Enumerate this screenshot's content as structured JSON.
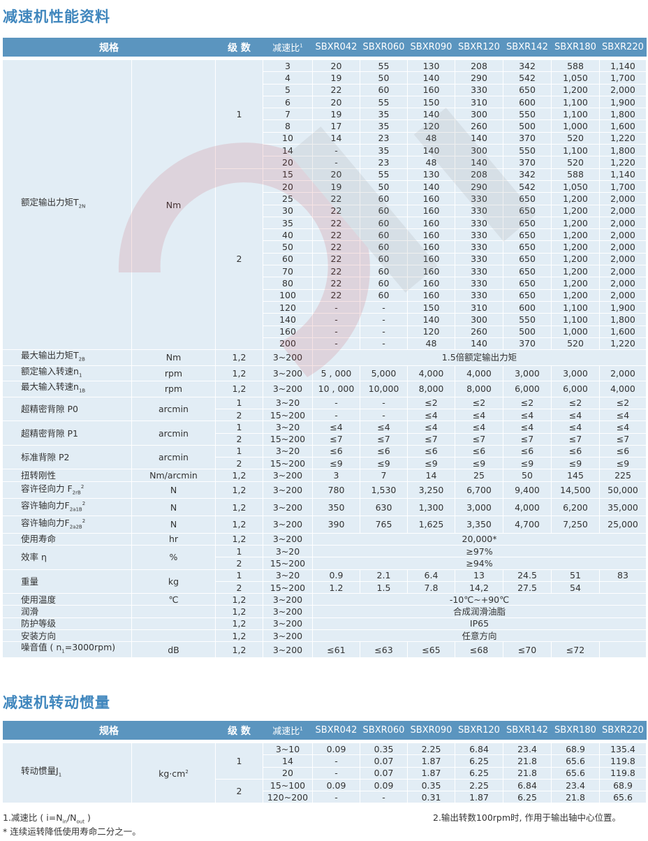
{
  "title": "减速机性能资料",
  "title2": "减速机转动惯量",
  "header": {
    "spec": "规格",
    "stage": "级 数",
    "ratio": "减速比",
    "ratio_sup": "1",
    "models": [
      "SBXR042",
      "SBXR060",
      "SBXR090",
      "SBXR120",
      "SBXR142",
      "SBXR180",
      "SBXR220"
    ]
  },
  "spec_groups": [
    {
      "label": "额定输出力矩T",
      "sub": "2N",
      "unit": "Nm",
      "stages": [
        {
          "stage": "1",
          "rows": [
            {
              "ratio": "3",
              "values": [
                "20",
                "55",
                "130",
                "208",
                "342",
                "588",
                "1,140"
              ]
            },
            {
              "ratio": "4",
              "values": [
                "19",
                "50",
                "140",
                "290",
                "542",
                "1,050",
                "1,700"
              ]
            },
            {
              "ratio": "5",
              "values": [
                "22",
                "60",
                "160",
                "330",
                "650",
                "1,200",
                "2,000"
              ]
            },
            {
              "ratio": "6",
              "values": [
                "20",
                "55",
                "150",
                "310",
                "600",
                "1,100",
                "1,900"
              ]
            },
            {
              "ratio": "7",
              "values": [
                "19",
                "35",
                "140",
                "300",
                "550",
                "1,100",
                "1,800"
              ]
            },
            {
              "ratio": "8",
              "values": [
                "17",
                "35",
                "120",
                "260",
                "500",
                "1,000",
                "1,600"
              ]
            },
            {
              "ratio": "10",
              "values": [
                "14",
                "23",
                "48",
                "140",
                "370",
                "520",
                "1,220"
              ]
            },
            {
              "ratio": "14",
              "values": [
                "-",
                "35",
                "140",
                "300",
                "550",
                "1,100",
                "1,800"
              ]
            },
            {
              "ratio": "20",
              "values": [
                "-",
                "23",
                "48",
                "140",
                "370",
                "520",
                "1,220"
              ]
            }
          ]
        },
        {
          "stage": "2",
          "rows": [
            {
              "ratio": "15",
              "values": [
                "20",
                "55",
                "130",
                "208",
                "342",
                "588",
                "1,140"
              ]
            },
            {
              "ratio": "20",
              "values": [
                "19",
                "50",
                "140",
                "290",
                "542",
                "1,050",
                "1,700"
              ]
            },
            {
              "ratio": "25",
              "values": [
                "22",
                "60",
                "160",
                "330",
                "650",
                "1,200",
                "2,000"
              ]
            },
            {
              "ratio": "30",
              "values": [
                "22",
                "60",
                "160",
                "330",
                "650",
                "1,200",
                "2,000"
              ]
            },
            {
              "ratio": "35",
              "values": [
                "22",
                "60",
                "160",
                "330",
                "650",
                "1,200",
                "2,000"
              ]
            },
            {
              "ratio": "40",
              "values": [
                "22",
                "60",
                "160",
                "330",
                "650",
                "1,200",
                "2,000"
              ]
            },
            {
              "ratio": "50",
              "values": [
                "22",
                "60",
                "160",
                "330",
                "650",
                "1,200",
                "2,000"
              ]
            },
            {
              "ratio": "60",
              "values": [
                "22",
                "60",
                "160",
                "330",
                "650",
                "1,200",
                "2,000"
              ]
            },
            {
              "ratio": "70",
              "values": [
                "22",
                "60",
                "160",
                "330",
                "650",
                "1,200",
                "2,000"
              ]
            },
            {
              "ratio": "80",
              "values": [
                "22",
                "60",
                "160",
                "330",
                "650",
                "1,200",
                "2,000"
              ]
            },
            {
              "ratio": "100",
              "values": [
                "22",
                "60",
                "160",
                "330",
                "650",
                "1,200",
                "2,000"
              ]
            },
            {
              "ratio": "120",
              "values": [
                "-",
                "-",
                "150",
                "310",
                "600",
                "1,100",
                "1,900"
              ]
            },
            {
              "ratio": "140",
              "values": [
                "-",
                "-",
                "140",
                "300",
                "550",
                "1,100",
                "1,800"
              ]
            },
            {
              "ratio": "160",
              "values": [
                "-",
                "-",
                "120",
                "260",
                "500",
                "1,000",
                "1,600"
              ]
            },
            {
              "ratio": "200",
              "values": [
                "-",
                "-",
                "48",
                "140",
                "370",
                "520",
                "1,220"
              ]
            }
          ]
        }
      ]
    },
    {
      "label": "最大输出力矩T",
      "sub": "2B",
      "unit": "Nm",
      "stages": [
        {
          "stage": "1,2",
          "rows": [
            {
              "ratio": "3~200",
              "span": "1.5倍额定输出力矩"
            }
          ]
        }
      ]
    },
    {
      "label": "额定输入转速n",
      "sub": "1",
      "unit": "rpm",
      "stages": [
        {
          "stage": "1,2",
          "rows": [
            {
              "ratio": "3~200",
              "values": [
                "5 , 000",
                "5,000",
                "4,000",
                "4,000",
                "3,000",
                "3,000",
                "2,000"
              ]
            }
          ]
        }
      ]
    },
    {
      "label": "最大输入转速n",
      "sub": "1B",
      "unit": "rpm",
      "stages": [
        {
          "stage": "1,2",
          "rows": [
            {
              "ratio": "3~200",
              "values": [
                "10 , 000",
                "10,000",
                "8,000",
                "8,000",
                "6,000",
                "6,000",
                "4,000"
              ]
            }
          ]
        }
      ]
    },
    {
      "label": "超精密背隙 P0",
      "unit": "arcmin",
      "stages": [
        {
          "stage": "1",
          "rows": [
            {
              "ratio": "3~20",
              "values": [
                "-",
                "-",
                "≤2",
                "≤2",
                "≤2",
                "≤2",
                "≤2"
              ]
            }
          ]
        },
        {
          "stage": "2",
          "rows": [
            {
              "ratio": "15~200",
              "values": [
                "-",
                "-",
                "≤4",
                "≤4",
                "≤4",
                "≤4",
                "≤4"
              ]
            }
          ]
        }
      ]
    },
    {
      "label": "超精密背隙 P1",
      "unit": "arcmin",
      "stages": [
        {
          "stage": "1",
          "rows": [
            {
              "ratio": "3~20",
              "values": [
                "≤4",
                "≤4",
                "≤4",
                "≤4",
                "≤4",
                "≤4",
                "≤4"
              ]
            }
          ]
        },
        {
          "stage": "2",
          "rows": [
            {
              "ratio": "15~200",
              "values": [
                "≤7",
                "≤7",
                "≤7",
                "≤7",
                "≤7",
                "≤7",
                "≤7"
              ]
            }
          ]
        }
      ]
    },
    {
      "label": "标准背隙 P2",
      "unit": "arcmin",
      "stages": [
        {
          "stage": "1",
          "rows": [
            {
              "ratio": "3~20",
              "values": [
                "≤6",
                "≤6",
                "≤6",
                "≤6",
                "≤6",
                "≤6",
                "≤6"
              ]
            }
          ]
        },
        {
          "stage": "2",
          "rows": [
            {
              "ratio": "15~200",
              "values": [
                "≤9",
                "≤9",
                "≤9",
                "≤9",
                "≤9",
                "≤9",
                "≤9"
              ]
            }
          ]
        }
      ]
    },
    {
      "label": "扭转刚性",
      "unit": "Nm/arcmin",
      "stages": [
        {
          "stage": "1,2",
          "rows": [
            {
              "ratio": "3~200",
              "values": [
                "3",
                "7",
                "14",
                "25",
                "50",
                "145",
                "225"
              ]
            }
          ]
        }
      ]
    },
    {
      "label": "容许径向力 F",
      "sub": "2rB",
      "sup": "2",
      "unit": "N",
      "stages": [
        {
          "stage": "1,2",
          "rows": [
            {
              "ratio": "3~200",
              "values": [
                "780",
                "1,530",
                "3,250",
                "6,700",
                "9,400",
                "14,500",
                "50,000"
              ]
            }
          ]
        }
      ]
    },
    {
      "label": "容许轴向力F",
      "sub": "2a1B",
      "sup": "2",
      "unit": "N",
      "stages": [
        {
          "stage": "1,2",
          "rows": [
            {
              "ratio": "3~200",
              "values": [
                "350",
                "630",
                "1,300",
                "3,000",
                "4,000",
                "6,200",
                "35,000"
              ]
            }
          ]
        }
      ]
    },
    {
      "label": "容许轴向力F",
      "sub": "2a2B",
      "sup": "2",
      "unit": "N",
      "stages": [
        {
          "stage": "1,2",
          "rows": [
            {
              "ratio": "3~200",
              "values": [
                "390",
                "765",
                "1,625",
                "3,350",
                "4,700",
                "7,250",
                "25,000"
              ]
            }
          ]
        }
      ]
    },
    {
      "label": "使用寿命",
      "unit": "hr",
      "stages": [
        {
          "stage": "1,2",
          "rows": [
            {
              "ratio": "3~200",
              "span": "20,000*"
            }
          ]
        }
      ]
    },
    {
      "label": "效率 η",
      "unit": "%",
      "stages": [
        {
          "stage": "1",
          "rows": [
            {
              "ratio": "3~20",
              "span": "≥97%"
            }
          ]
        },
        {
          "stage": "2",
          "rows": [
            {
              "ratio": "15~200",
              "span": "≥94%"
            }
          ]
        }
      ]
    },
    {
      "label": "重量",
      "unit": "kg",
      "stages": [
        {
          "stage": "1",
          "rows": [
            {
              "ratio": "3~20",
              "values": [
                "0.9",
                "2.1",
                "6.4",
                "13",
                "24.5",
                "51",
                "83"
              ]
            }
          ]
        },
        {
          "stage": "2",
          "rows": [
            {
              "ratio": "15~200",
              "values": [
                "1.2",
                "1.5",
                "7.8",
                "14,2",
                "27.5",
                "54",
                ""
              ]
            }
          ]
        }
      ]
    },
    {
      "label": "使用温度",
      "unit": "℃",
      "stages": [
        {
          "stage": "1,2",
          "rows": [
            {
              "ratio": "3~200",
              "span": "-10℃~+90℃"
            }
          ]
        }
      ]
    },
    {
      "label": "润滑",
      "unit": "",
      "stages": [
        {
          "stage": "1,2",
          "rows": [
            {
              "ratio": "3~200",
              "span": "合成润滑油脂"
            }
          ]
        }
      ]
    },
    {
      "label": "防护等级",
      "unit": "",
      "stages": [
        {
          "stage": "1,2",
          "rows": [
            {
              "ratio": "3~200",
              "span": "IP65"
            }
          ]
        }
      ]
    },
    {
      "label": "安装方向",
      "unit": "",
      "stages": [
        {
          "stage": "1,2",
          "rows": [
            {
              "ratio": "3~200",
              "span": "任意方向"
            }
          ]
        }
      ]
    },
    {
      "label": "噪音值 ( n",
      "sub": "1",
      "label_tail": "=3000rpm)",
      "unit": "dB",
      "stages": [
        {
          "stage": "1,2",
          "rows": [
            {
              "ratio": "3~200",
              "values": [
                "≤61",
                "≤63",
                "≤65",
                "≤68",
                "≤70",
                "≤72",
                ""
              ]
            }
          ]
        }
      ]
    }
  ],
  "inertia_groups": [
    {
      "label": "转动惯量J",
      "sub": "1",
      "unit": "kg·cm",
      "unit_sup": "2",
      "stages": [
        {
          "stage": "1",
          "rows": [
            {
              "ratio": "3~10",
              "values": [
                "0.09",
                "0.35",
                "2.25",
                "6.84",
                "23.4",
                "68.9",
                "135.4"
              ]
            },
            {
              "ratio": "14",
              "values": [
                "-",
                "0.07",
                "1.87",
                "6.25",
                "21.8",
                "65.6",
                "119.8"
              ]
            },
            {
              "ratio": "20",
              "values": [
                "-",
                "0.07",
                "1.87",
                "6.25",
                "21.8",
                "65.6",
                "119.8"
              ]
            }
          ]
        },
        {
          "stage": "2",
          "rows": [
            {
              "ratio": "15~100",
              "values": [
                "0.09",
                "0.09",
                "0.35",
                "2.25",
                "6.84",
                "23.4",
                "68.9"
              ]
            },
            {
              "ratio": "120~200",
              "values": [
                "-",
                "-",
                "0.31",
                "1.87",
                "6.25",
                "21.8",
                "65.6"
              ]
            }
          ]
        }
      ]
    }
  ],
  "notes": {
    "n1": "1.减速比 ( i=N",
    "n1_sub_in": "in",
    "n1_mid": "/N",
    "n1_sub_out": "out",
    "n1_tail": " )",
    "n2": "2.输出转数100rpm时, 作用于输出轴中心位置。",
    "n3": "*  连续运转降低使用寿命二分之一。"
  },
  "colors": {
    "header_bg": "#5b95bf",
    "cell_bg": "#e2edf5",
    "title": "#3f86bd",
    "watermark": "#c0303a"
  }
}
